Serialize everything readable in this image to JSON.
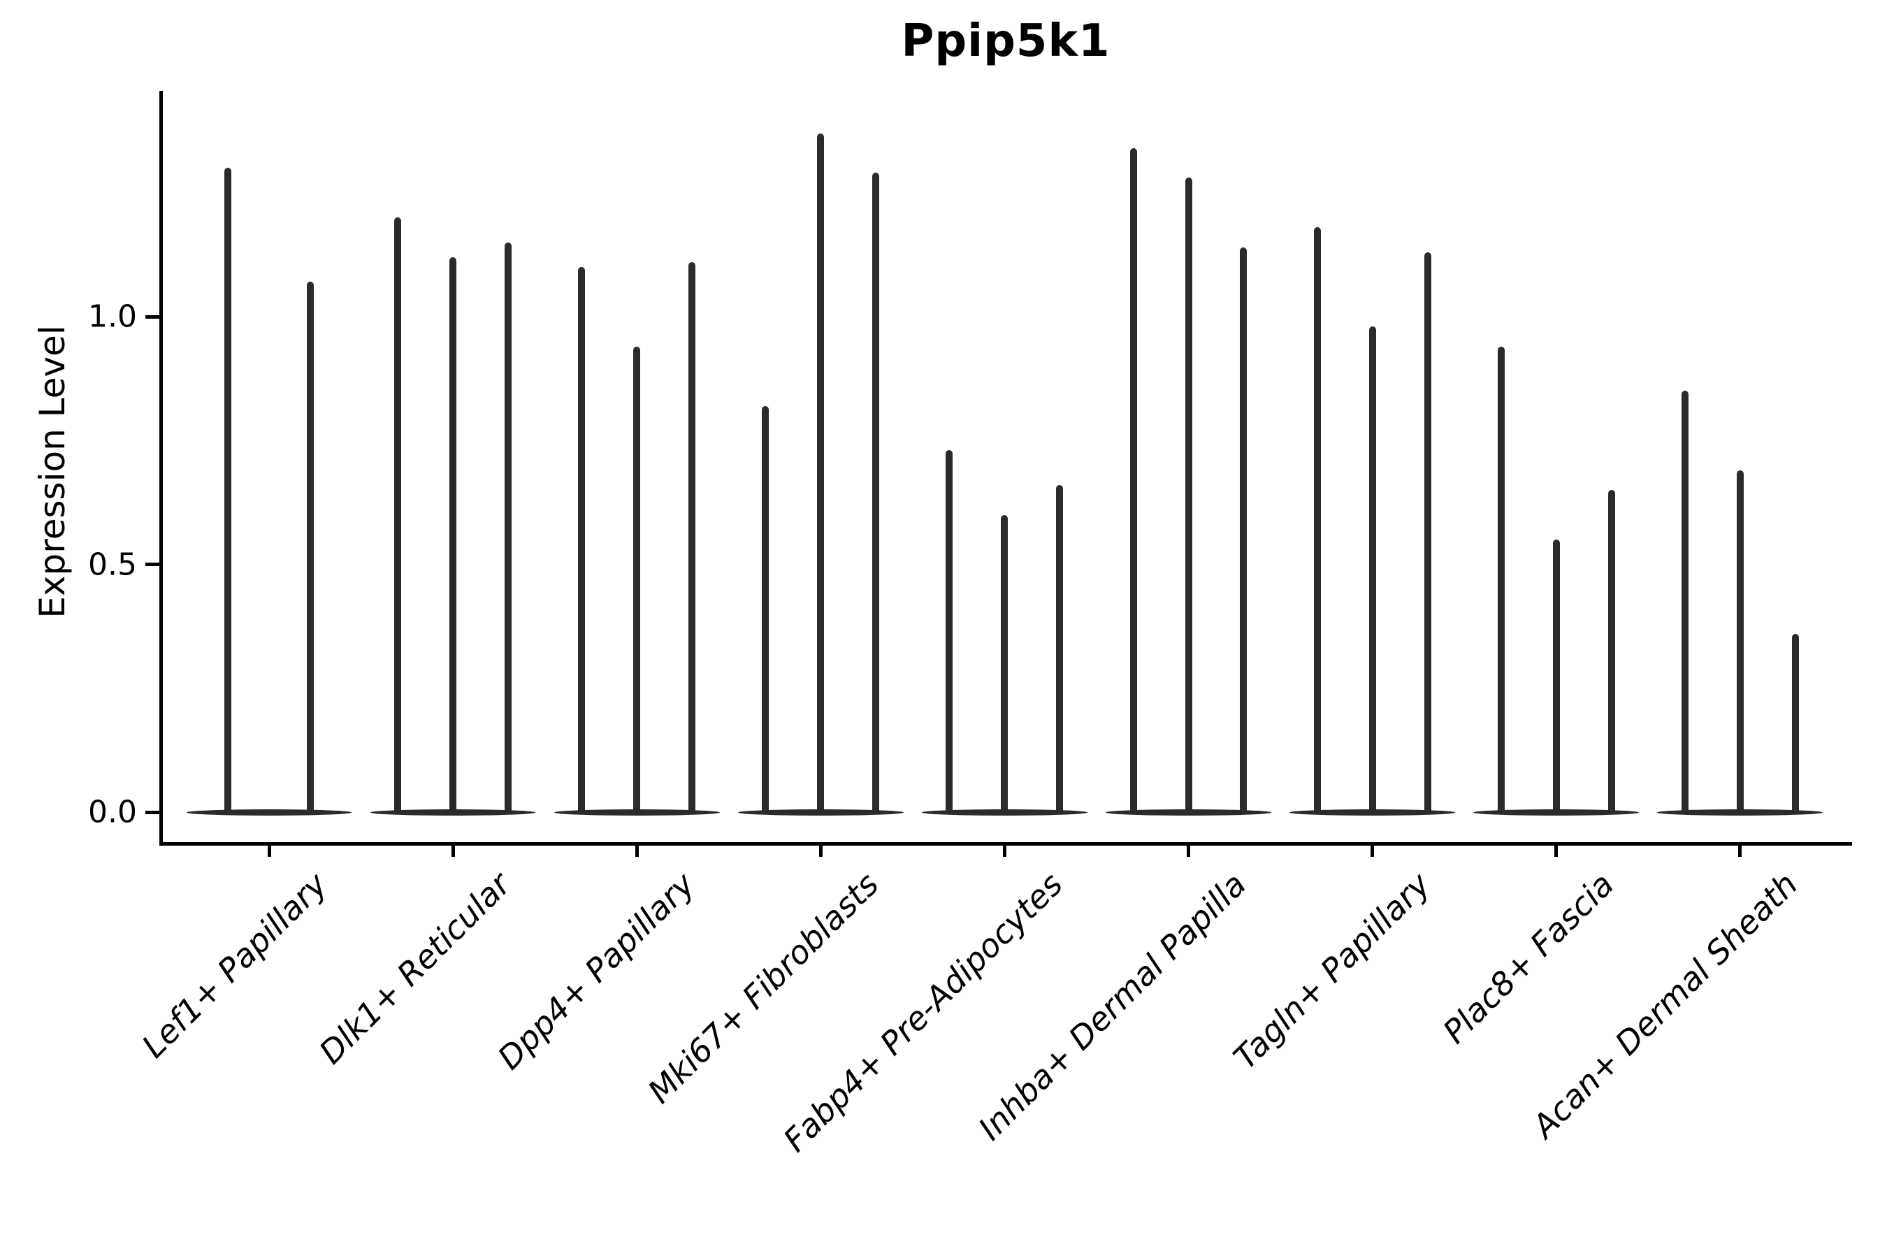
{
  "title": "Ppip5k1",
  "axes": {
    "ylabel": "Expression Level",
    "ytick_labels": [
      "0.0",
      "0.5",
      "1.0"
    ]
  },
  "chart_data": {
    "type": "violin",
    "title": "Ppip5k1",
    "xlabel": "",
    "ylabel": "Expression Level",
    "ylim": [
      0.0,
      1.455
    ],
    "yticks": [
      0.0,
      0.5,
      1.0
    ],
    "grid": false,
    "legend": "none",
    "violin_color": "#2b2b2b",
    "axis_color": "#000000",
    "background": "#ffffff",
    "xtick_rotation": 45,
    "description": "Needle-thin violin plots of gene expression per fibroblast cell-type group; each group holds 2-3 violins whose mass sits at 0 with a thin spike to the maximum expression value.",
    "categories": [
      "Lef1+ Papillary",
      "Dlk1+ Reticular",
      "Dpp4+ Papillary",
      "Mki67+ Fibroblasts",
      "Fabp4+ Pre-Adipocytes",
      "Inhba+ Dermal Papilla",
      "Tagln+ Papillary",
      "Plac8+ Fascia",
      "Acan+ Dermal Sheath"
    ],
    "groups": [
      {
        "category": "Lef1+ Papillary",
        "violin_maxima": [
          1.3,
          1.07
        ]
      },
      {
        "category": "Dlk1+ Reticular",
        "violin_maxima": [
          1.2,
          1.12,
          1.15
        ]
      },
      {
        "category": "Dpp4+ Papillary",
        "violin_maxima": [
          1.1,
          0.94,
          1.11
        ]
      },
      {
        "category": "Mki67+ Fibroblasts",
        "violin_maxima": [
          0.82,
          1.37,
          1.29
        ]
      },
      {
        "category": "Fabp4+ Pre-Adipocytes",
        "violin_maxima": [
          0.73,
          0.6,
          0.66
        ]
      },
      {
        "category": "Inhba+ Dermal Papilla",
        "violin_maxima": [
          1.34,
          1.28,
          1.14
        ]
      },
      {
        "category": "Tagln+ Papillary",
        "violin_maxima": [
          1.18,
          0.98,
          1.13
        ]
      },
      {
        "category": "Plac8+ Fascia",
        "violin_maxima": [
          0.94,
          0.55,
          0.65
        ]
      },
      {
        "category": "Acan+ Dermal Sheath",
        "violin_maxima": [
          0.85,
          0.69,
          0.36
        ]
      }
    ],
    "violin_baseline_value": 0.0
  }
}
